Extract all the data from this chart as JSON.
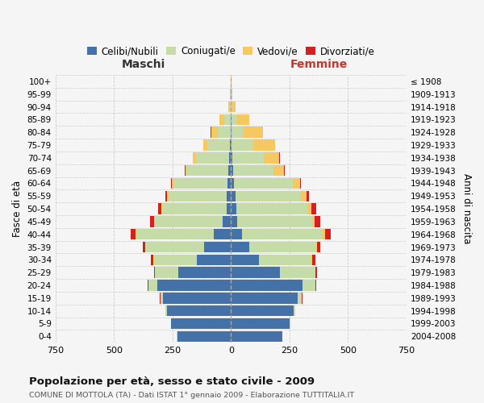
{
  "age_groups": [
    "0-4",
    "5-9",
    "10-14",
    "15-19",
    "20-24",
    "25-29",
    "30-34",
    "35-39",
    "40-44",
    "45-49",
    "50-54",
    "55-59",
    "60-64",
    "65-69",
    "70-74",
    "75-79",
    "80-84",
    "85-89",
    "90-94",
    "95-99",
    "100+"
  ],
  "birth_years": [
    "2004-2008",
    "1999-2003",
    "1994-1998",
    "1989-1993",
    "1984-1988",
    "1979-1983",
    "1974-1978",
    "1969-1973",
    "1964-1968",
    "1959-1963",
    "1954-1958",
    "1949-1953",
    "1944-1948",
    "1939-1943",
    "1934-1938",
    "1929-1933",
    "1924-1928",
    "1919-1923",
    "1914-1918",
    "1909-1913",
    "≤ 1908"
  ],
  "males": {
    "celibe": [
      230,
      255,
      275,
      290,
      315,
      225,
      145,
      115,
      75,
      35,
      20,
      18,
      16,
      12,
      8,
      5,
      2,
      2,
      0,
      0,
      0
    ],
    "coniugato": [
      1,
      2,
      4,
      12,
      38,
      100,
      185,
      250,
      330,
      290,
      275,
      250,
      230,
      175,
      140,
      95,
      55,
      28,
      5,
      2,
      0
    ],
    "vedovo": [
      0,
      0,
      0,
      0,
      0,
      0,
      1,
      1,
      2,
      2,
      3,
      5,
      5,
      8,
      14,
      18,
      28,
      18,
      5,
      2,
      0
    ],
    "divorziato": [
      0,
      0,
      0,
      1,
      2,
      5,
      10,
      12,
      20,
      18,
      12,
      8,
      5,
      3,
      2,
      1,
      1,
      0,
      0,
      0,
      0
    ]
  },
  "females": {
    "nubile": [
      220,
      250,
      268,
      285,
      305,
      210,
      120,
      78,
      48,
      28,
      22,
      18,
      14,
      8,
      6,
      4,
      2,
      2,
      0,
      0,
      0
    ],
    "coniugata": [
      1,
      3,
      6,
      18,
      55,
      150,
      225,
      285,
      345,
      320,
      305,
      280,
      250,
      175,
      135,
      90,
      50,
      22,
      6,
      2,
      0
    ],
    "vedova": [
      0,
      0,
      0,
      0,
      1,
      2,
      3,
      5,
      8,
      10,
      18,
      25,
      30,
      45,
      65,
      95,
      85,
      55,
      15,
      5,
      1
    ],
    "divorziata": [
      0,
      0,
      0,
      1,
      2,
      5,
      12,
      15,
      25,
      22,
      18,
      10,
      5,
      3,
      2,
      1,
      1,
      0,
      0,
      0,
      0
    ]
  },
  "colors": {
    "celibe": "#4472a8",
    "coniugato": "#c5dba8",
    "vedovo": "#f5c860",
    "divorziato": "#d42020"
  },
  "title": "Popolazione per età, sesso e stato civile - 2009",
  "subtitle": "COMUNE DI MOTTOLA (TA) - Dati ISTAT 1° gennaio 2009 - Elaborazione TUTTITALIA.IT",
  "xlabel_left": "Maschi",
  "xlabel_right": "Femmine",
  "ylabel_left": "Fasce di età",
  "ylabel_right": "Anni di nascita",
  "legend_labels": [
    "Celibi/Nubili",
    "Coniugati/e",
    "Vedovi/e",
    "Divorziati/e"
  ],
  "xlim": 750,
  "background_color": "#f5f5f5"
}
